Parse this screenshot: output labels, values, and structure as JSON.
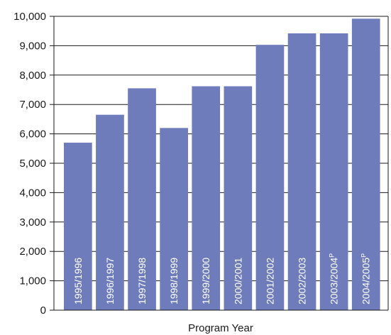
{
  "chart_data": {
    "type": "bar",
    "title": "",
    "xlabel": "Program Year",
    "ylabel": "",
    "categories": [
      "1995/1996",
      "1996/1997",
      "1997/1998",
      "1998/1999",
      "1999/2000",
      "2000/2001",
      "2001/2002",
      "2002/2003",
      "2003/2004",
      "2004/2005"
    ],
    "category_superscripts": [
      "",
      "",
      "",
      "",
      "",
      "",
      "",
      "",
      "P",
      "P"
    ],
    "values": [
      5700,
      6650,
      7550,
      6200,
      7620,
      7620,
      9030,
      9420,
      9420,
      9920
    ],
    "ylim": [
      0,
      10000
    ],
    "y_ticks": [
      0,
      1000,
      2000,
      3000,
      4000,
      5000,
      6000,
      7000,
      8000,
      9000,
      10000
    ],
    "y_tick_labels": [
      "0",
      "1,000",
      "2,000",
      "3,000",
      "4,000",
      "5,000",
      "6,000",
      "7,000",
      "8,000",
      "9,000",
      "10,000"
    ],
    "grid": true,
    "colors": {
      "bar": "#6f7cbc",
      "grid": "#1a1a1a",
      "axis": "#1a1a1a",
      "bar_label": "#ffffff"
    }
  }
}
